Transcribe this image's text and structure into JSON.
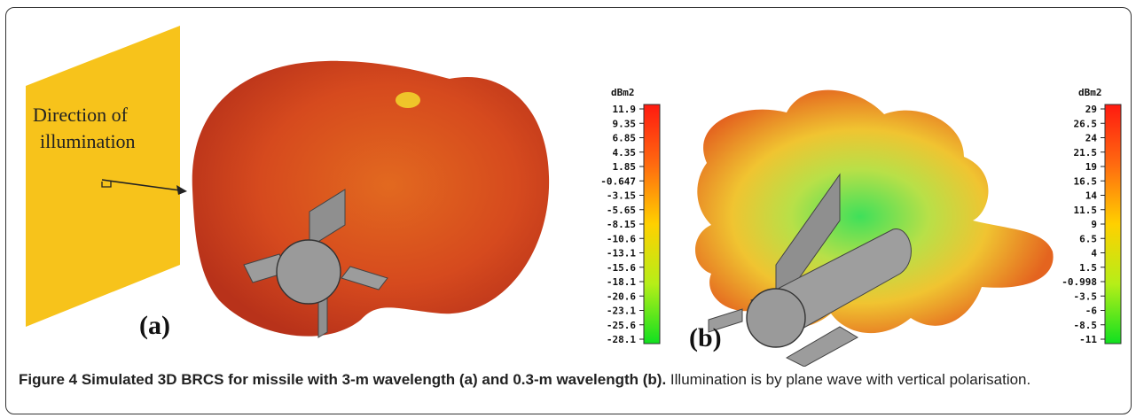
{
  "figure": {
    "annotation_lines": [
      "Direction of",
      "illumination"
    ],
    "panel_a_label": "(a)",
    "panel_b_label": "(b)"
  },
  "colorbar_a": {
    "unit": "dBm2",
    "ticks": [
      "11.9",
      "9.35",
      "6.85",
      "4.35",
      "1.85",
      "-0.647",
      "-3.15",
      "-5.65",
      "-8.15",
      "-10.6",
      "-13.1",
      "-15.6",
      "-18.1",
      "-20.6",
      "-23.1",
      "-25.6",
      "-28.1"
    ]
  },
  "colorbar_b": {
    "unit": "dBm2",
    "ticks": [
      "29",
      "26.5",
      "24",
      "21.5",
      "19",
      "16.5",
      "14",
      "11.5",
      "9",
      "6.5",
      "4",
      "1.5",
      "-0.998",
      "-3.5",
      "-6",
      "-8.5",
      "-11"
    ]
  },
  "colors": {
    "plane": "#f7c31b",
    "pattern_a": "#d9471f",
    "pattern_b": "#e08a1c",
    "missile": "#9a9a9a"
  },
  "caption": {
    "bold": "Figure 4 Simulated 3D BRCS for missile with 3-m wavelength (a) and 0.3-m wavelength (b).",
    "normal": " Illumination is by plane wave with vertical polarisation."
  }
}
